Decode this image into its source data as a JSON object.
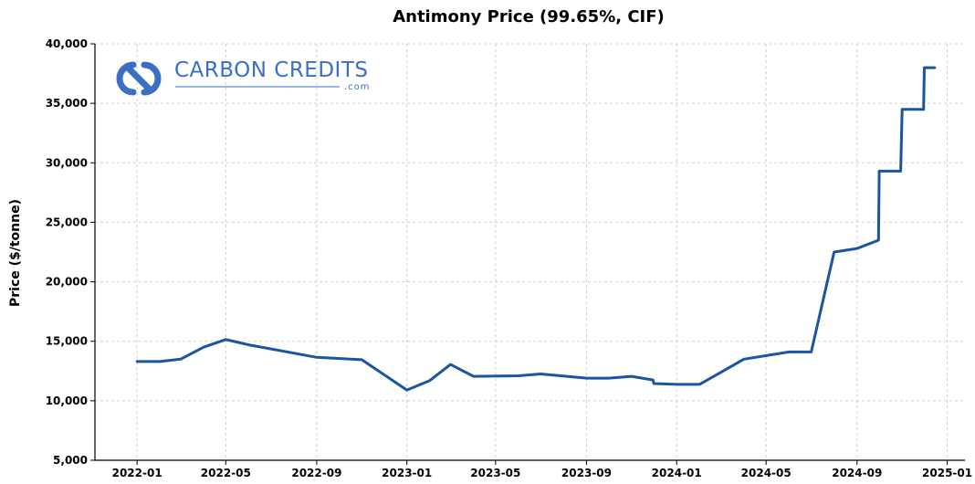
{
  "chart_data": {
    "type": "line",
    "title": "Antimony Price (99.65%, CIF)",
    "ylabel": "Price ($/tonne)",
    "xlabel": "",
    "xlim": [
      "2021-11-05",
      "2025-01-25"
    ],
    "ylim": [
      5000,
      40000
    ],
    "yticks": [
      5000,
      10000,
      15000,
      20000,
      25000,
      30000,
      35000,
      40000
    ],
    "ytick_labels": [
      "5,000",
      "10,000",
      "15,000",
      "20,000",
      "25,000",
      "30,000",
      "35,000",
      "40,000"
    ],
    "xticks": [
      "2022-01-01",
      "2022-05-01",
      "2022-09-01",
      "2023-01-01",
      "2023-05-01",
      "2023-09-01",
      "2024-01-01",
      "2024-05-01",
      "2024-09-01",
      "2025-01-01"
    ],
    "xtick_labels": [
      "2022-01",
      "2022-05",
      "2022-09",
      "2023-01",
      "2023-05",
      "2023-09",
      "2024-01",
      "2024-05",
      "2024-09",
      "2025-01"
    ],
    "grid": true,
    "series": [
      {
        "color": "#1a55a3",
        "points": [
          {
            "x": "2022-01-01",
            "y": 13300
          },
          {
            "x": "2022-02-01",
            "y": 13300
          },
          {
            "x": "2022-03-01",
            "y": 13500
          },
          {
            "x": "2022-04-01",
            "y": 14500
          },
          {
            "x": "2022-05-01",
            "y": 15150
          },
          {
            "x": "2022-06-01",
            "y": 14700
          },
          {
            "x": "2022-09-01",
            "y": 13650
          },
          {
            "x": "2022-11-01",
            "y": 13450
          },
          {
            "x": "2023-01-01",
            "y": 10900
          },
          {
            "x": "2023-02-01",
            "y": 11700
          },
          {
            "x": "2023-03-01",
            "y": 13050
          },
          {
            "x": "2023-04-01",
            "y": 12050
          },
          {
            "x": "2023-06-01",
            "y": 12100
          },
          {
            "x": "2023-07-01",
            "y": 12250
          },
          {
            "x": "2023-09-01",
            "y": 11900
          },
          {
            "x": "2023-10-01",
            "y": 11900
          },
          {
            "x": "2023-11-01",
            "y": 12050
          },
          {
            "x": "2023-11-30",
            "y": 11750
          },
          {
            "x": "2023-12-01",
            "y": 11450
          },
          {
            "x": "2024-01-01",
            "y": 11380
          },
          {
            "x": "2024-02-01",
            "y": 11380
          },
          {
            "x": "2024-04-01",
            "y": 13500
          },
          {
            "x": "2024-06-01",
            "y": 14100
          },
          {
            "x": "2024-07-01",
            "y": 14100
          },
          {
            "x": "2024-08-01",
            "y": 22500
          },
          {
            "x": "2024-09-01",
            "y": 22800
          },
          {
            "x": "2024-09-30",
            "y": 23500
          },
          {
            "x": "2024-10-01",
            "y": 29300
          },
          {
            "x": "2024-10-30",
            "y": 29300
          },
          {
            "x": "2024-11-01",
            "y": 34500
          },
          {
            "x": "2024-11-30",
            "y": 34500
          },
          {
            "x": "2024-12-01",
            "y": 38000
          },
          {
            "x": "2024-12-15",
            "y": 38000
          }
        ]
      }
    ]
  },
  "logo": {
    "brand": "CARBON CREDITS",
    "sub": ".com",
    "color": "#3a6fc4"
  }
}
